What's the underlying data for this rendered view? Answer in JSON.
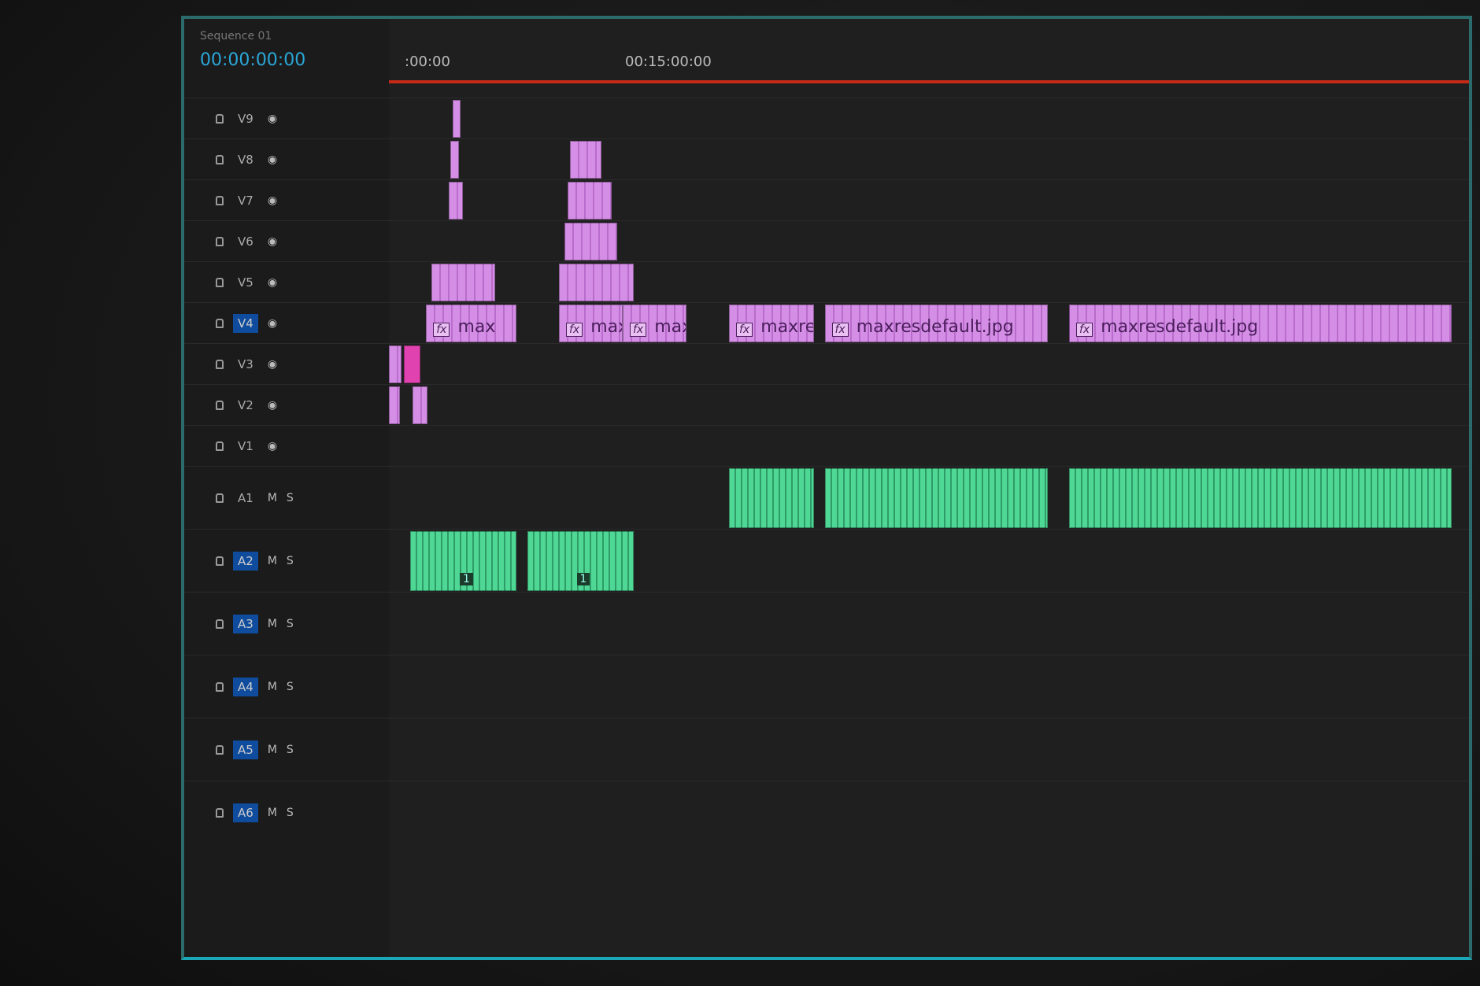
{
  "sequence": {
    "tab": "Sequence 01",
    "timecode": "00:00:00:00"
  },
  "ruler": {
    "labels": [
      ":00:00",
      "00:15:00:00"
    ],
    "accent": "#c62a17"
  },
  "colors": {
    "video": "#d58ee6",
    "audio": "#4fd795",
    "track_active": "#0f4c9e",
    "border": "#1aa7b8"
  },
  "tracks": [
    {
      "name": "V9",
      "kind": "video",
      "active": false,
      "buttons": [
        "eye-icon"
      ]
    },
    {
      "name": "V8",
      "kind": "video",
      "active": false,
      "buttons": [
        "eye-icon"
      ]
    },
    {
      "name": "V7",
      "kind": "video",
      "active": false,
      "buttons": [
        "eye-icon"
      ]
    },
    {
      "name": "V6",
      "kind": "video",
      "active": false,
      "buttons": [
        "eye-icon"
      ]
    },
    {
      "name": "V5",
      "kind": "video",
      "active": false,
      "buttons": [
        "eye-icon"
      ]
    },
    {
      "name": "V4",
      "kind": "video",
      "active": true,
      "buttons": [
        "eye-icon"
      ]
    },
    {
      "name": "V3",
      "kind": "video",
      "active": false,
      "buttons": [
        "eye-icon"
      ]
    },
    {
      "name": "V2",
      "kind": "video",
      "active": false,
      "buttons": [
        "eye-icon"
      ]
    },
    {
      "name": "V1",
      "kind": "video",
      "active": false,
      "buttons": [
        "eye-icon"
      ]
    },
    {
      "name": "A1",
      "kind": "audio",
      "active": false,
      "labels": [
        "M",
        "S"
      ]
    },
    {
      "name": "A2",
      "kind": "audio",
      "active": true,
      "labels": [
        "M",
        "S"
      ]
    },
    {
      "name": "A3",
      "kind": "audio",
      "active": true,
      "labels": [
        "M",
        "S"
      ]
    },
    {
      "name": "A4",
      "kind": "audio",
      "active": true,
      "labels": [
        "M",
        "S"
      ]
    },
    {
      "name": "A5",
      "kind": "audio",
      "active": true,
      "labels": [
        "M",
        "S"
      ]
    },
    {
      "name": "A6",
      "kind": "audio",
      "active": true,
      "labels": [
        "M",
        "S"
      ]
    }
  ],
  "clips": [
    {
      "track": 0,
      "start": 60,
      "end": 64,
      "label": "",
      "type": "video"
    },
    {
      "track": 1,
      "start": 58,
      "end": 66,
      "label": "",
      "type": "video"
    },
    {
      "track": 2,
      "start": 56,
      "end": 70,
      "label": "",
      "type": "video"
    },
    {
      "track": 1,
      "start": 170,
      "end": 200,
      "label": "",
      "type": "video"
    },
    {
      "track": 2,
      "start": 168,
      "end": 210,
      "label": "",
      "type": "video"
    },
    {
      "track": 3,
      "start": 165,
      "end": 215,
      "label": "",
      "type": "video"
    },
    {
      "track": 4,
      "start": 40,
      "end": 100,
      "label": "",
      "type": "video"
    },
    {
      "track": 4,
      "start": 160,
      "end": 230,
      "label": "",
      "type": "video"
    },
    {
      "track": 5,
      "start": 35,
      "end": 120,
      "label": "max",
      "type": "video"
    },
    {
      "track": 5,
      "start": 160,
      "end": 220,
      "label": "maxi",
      "type": "video"
    },
    {
      "track": 5,
      "start": 220,
      "end": 280,
      "label": "maxre",
      "type": "video"
    },
    {
      "track": 5,
      "start": 320,
      "end": 400,
      "label": "maxresde",
      "type": "video"
    },
    {
      "track": 5,
      "start": 410,
      "end": 620,
      "label": "maxresdefault.jpg",
      "type": "video"
    },
    {
      "track": 5,
      "start": 640,
      "end": 1000,
      "label": "maxresdefault.jpg",
      "type": "video"
    },
    {
      "track": 6,
      "start": 0,
      "end": 12,
      "label": "",
      "type": "video"
    },
    {
      "track": 6,
      "start": 14,
      "end": 30,
      "label": "",
      "type": "pink"
    },
    {
      "track": 7,
      "start": 0,
      "end": 10,
      "label": "",
      "type": "video"
    },
    {
      "track": 7,
      "start": 22,
      "end": 36,
      "label": "",
      "type": "video"
    },
    {
      "track": 10,
      "start": 20,
      "end": 120,
      "label": "1",
      "type": "audio"
    },
    {
      "track": 10,
      "start": 130,
      "end": 230,
      "label": "1",
      "type": "audio"
    },
    {
      "track": 9,
      "start": 320,
      "end": 400,
      "label": "",
      "type": "audio"
    },
    {
      "track": 9,
      "start": 410,
      "end": 620,
      "label": "",
      "type": "audio"
    },
    {
      "track": 9,
      "start": 640,
      "end": 1000,
      "label": "",
      "type": "audio"
    }
  ]
}
